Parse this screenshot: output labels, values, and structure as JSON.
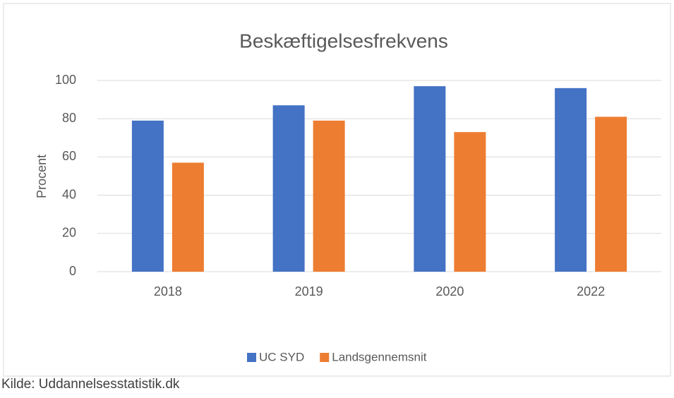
{
  "chart_data": {
    "type": "bar",
    "title": "Beskæftigelsesfrekvens",
    "y_label": "Procent",
    "categories": [
      "2018",
      "2019",
      "2020",
      "2022"
    ],
    "series": [
      {
        "name": "UC SYD",
        "color": "#4472c4",
        "values": [
          79,
          87,
          97,
          96
        ]
      },
      {
        "name": "Landsgennemsnit",
        "color": "#ed7d31",
        "values": [
          57,
          79,
          73,
          81
        ]
      }
    ],
    "ylim": [
      0,
      100
    ],
    "yticks": [
      0,
      20,
      40,
      60,
      80,
      100
    ],
    "grid": true,
    "legend": "bottom",
    "source": "Kilde: Uddannelsesstatistik.dk"
  }
}
